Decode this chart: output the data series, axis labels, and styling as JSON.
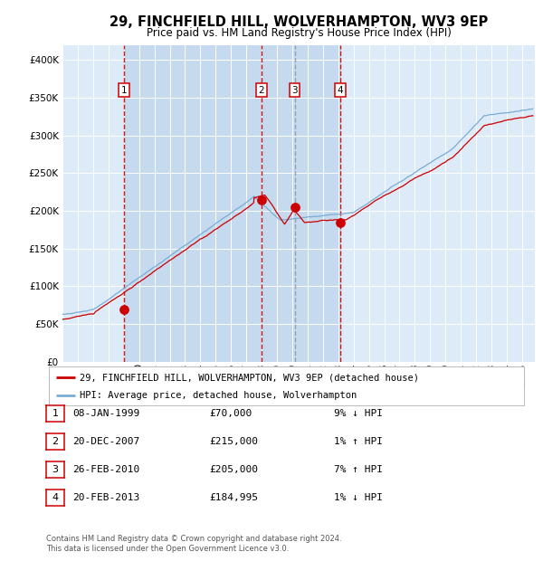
{
  "title": "29, FINCHFIELD HILL, WOLVERHAMPTON, WV3 9EP",
  "subtitle": "Price paid vs. HM Land Registry's House Price Index (HPI)",
  "legend_house": "29, FINCHFIELD HILL, WOLVERHAMPTON, WV3 9EP (detached house)",
  "legend_hpi": "HPI: Average price, detached house, Wolverhampton",
  "footer1": "Contains HM Land Registry data © Crown copyright and database right 2024.",
  "footer2": "This data is licensed under the Open Government Licence v3.0.",
  "transactions": [
    {
      "num": 1,
      "date": "08-JAN-1999",
      "price": 70000,
      "price_str": "£70,000",
      "pct": "9%",
      "dir": "↓",
      "year_x": 1999.03
    },
    {
      "num": 2,
      "date": "20-DEC-2007",
      "price": 215000,
      "price_str": "£215,000",
      "pct": "1%",
      "dir": "↑",
      "year_x": 2007.97
    },
    {
      "num": 3,
      "date": "26-FEB-2010",
      "price": 205000,
      "price_str": "£205,000",
      "pct": "7%",
      "dir": "↑",
      "year_x": 2010.15
    },
    {
      "num": 4,
      "date": "20-FEB-2013",
      "price": 184995,
      "price_str": "£184,995",
      "pct": "1%",
      "dir": "↓",
      "year_x": 2013.13
    }
  ],
  "ylim": [
    0,
    420000
  ],
  "yticks": [
    0,
    50000,
    100000,
    150000,
    200000,
    250000,
    300000,
    350000,
    400000
  ],
  "xlim_start": 1995.0,
  "xlim_end": 2025.83,
  "hpi_color": "#7aadd4",
  "house_color": "#cc0000",
  "dot_color": "#cc0000",
  "vline_colors": [
    "#cc0000",
    "#cc0000",
    "#999999",
    "#cc0000"
  ],
  "background_color": "#ffffff",
  "plot_bg_color": "#ddeaf7",
  "shade_color": "#c5d9ef",
  "grid_color": "#ffffff",
  "label_box_color": "#cc0000",
  "title_fontsize": 10.5,
  "subtitle_fontsize": 8.5,
  "tick_label_fontsize": 7.5,
  "legend_fontsize": 7.5,
  "table_fontsize": 8,
  "footer_fontsize": 6
}
